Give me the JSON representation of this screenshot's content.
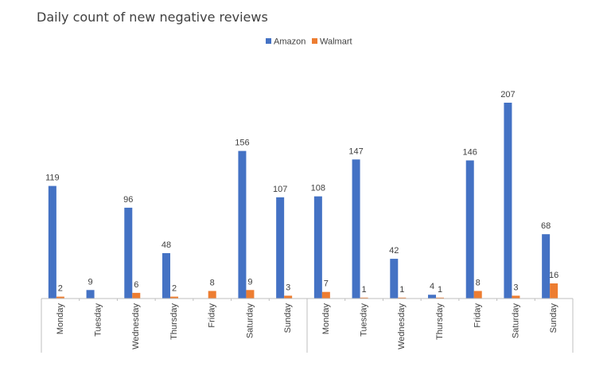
{
  "chart_data": {
    "type": "bar",
    "title": "Daily count of new negative reviews",
    "categories": [
      "Monday",
      "Tuesday",
      "Wednesday",
      "Thursday",
      "Friday",
      "Saturday",
      "Sunday",
      "Monday",
      "Tuesday",
      "Wednesday",
      "Thursday",
      "Friday",
      "Saturday",
      "Sunday"
    ],
    "series": [
      {
        "name": "Amazon",
        "color": "#4472c4",
        "values": [
          119,
          9,
          96,
          48,
          0,
          156,
          107,
          108,
          147,
          42,
          4,
          146,
          207,
          68
        ],
        "labels": [
          "119",
          "9",
          "96",
          "48",
          "",
          "156",
          "107",
          "108",
          "147",
          "42",
          "4",
          "146",
          "207",
          "68"
        ]
      },
      {
        "name": "Walmart",
        "color": "#ed7d31",
        "values": [
          2,
          0,
          6,
          2,
          8,
          9,
          3,
          7,
          1,
          1,
          1,
          8,
          3,
          16
        ],
        "labels": [
          "2",
          "",
          "6",
          "2",
          "8",
          "9",
          "3",
          "7",
          "1",
          "1",
          "1",
          "8",
          "3",
          "16"
        ]
      }
    ],
    "groups": 2,
    "ylim": [
      0,
      207
    ],
    "grid": false,
    "legend_position": "top"
  }
}
